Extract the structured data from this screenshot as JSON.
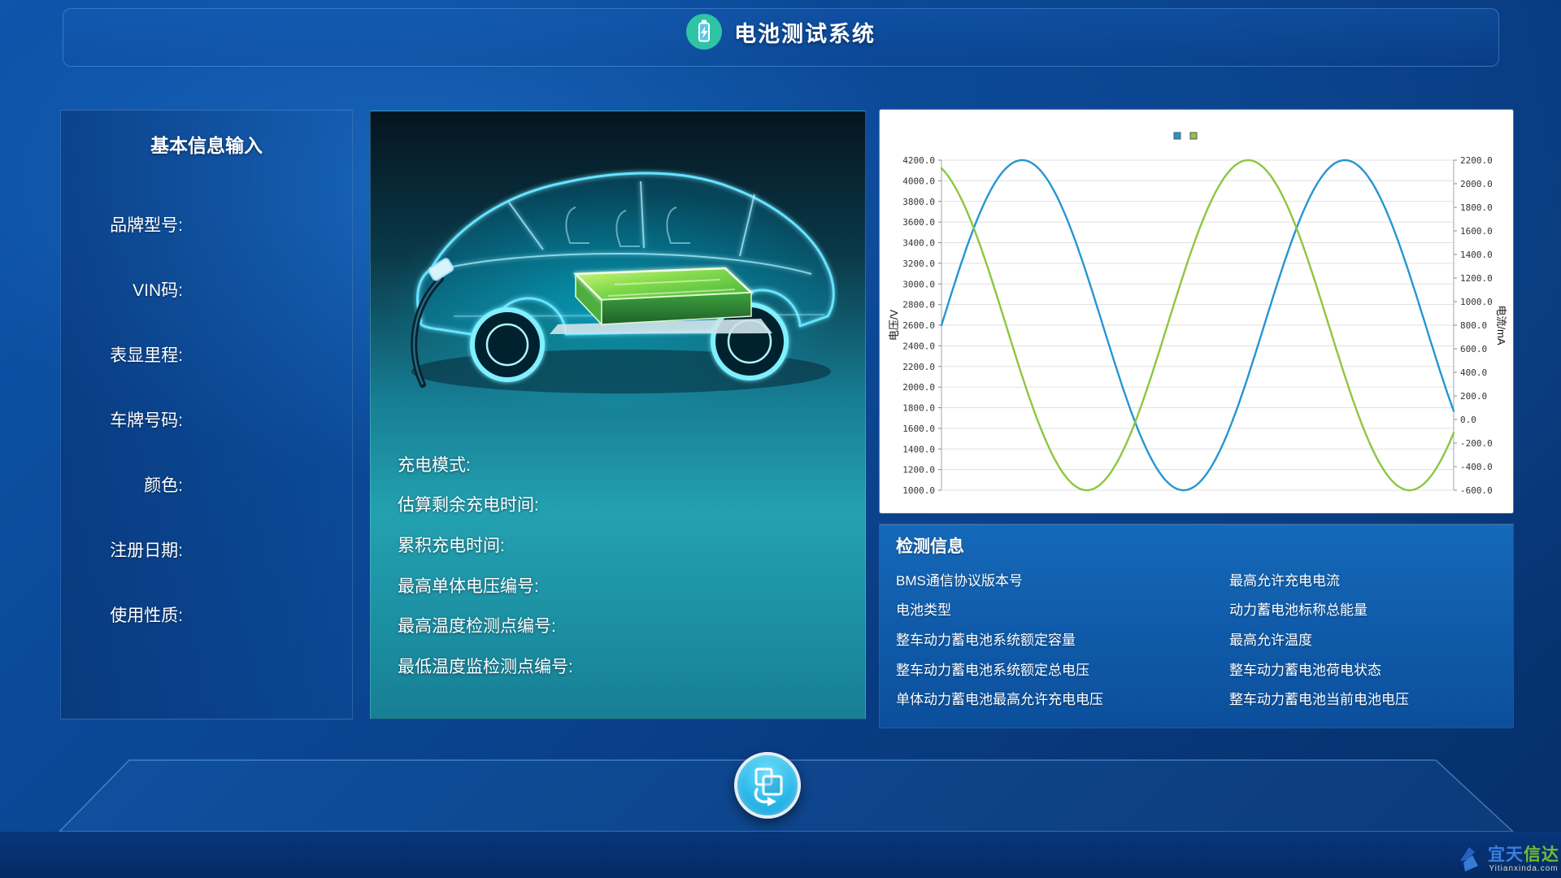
{
  "app": {
    "title": "电池测试系统"
  },
  "basic_info": {
    "title": "基本信息输入",
    "fields": [
      "品牌型号:",
      "VIN码:",
      "表显里程:",
      "车牌号码:",
      "颜色:",
      "注册日期:",
      "使用性质:"
    ]
  },
  "vehicle_status": {
    "fields": [
      "充电模式:",
      "估算剩余充电时间:",
      "累积充电时间:",
      "最高单体电压编号:",
      "最高温度检测点编号:",
      "最低温度监检测点编号:"
    ]
  },
  "chart_data": {
    "type": "line",
    "title": "",
    "grid": "horizontal",
    "legend_position": "top-center",
    "legend_swatches": [
      "#2596d1",
      "#8dc63f"
    ],
    "y_left": {
      "label": "电压/V",
      "min": 1000,
      "max": 4200,
      "step": 200,
      "tick_format": "0.0"
    },
    "y_right": {
      "label": "电流/mA",
      "min": -600,
      "max": 2200,
      "step": 200,
      "tick_format": "0.0"
    },
    "series": [
      {
        "name": "电压",
        "axis": "left",
        "color": "#2596d1",
        "waveform": {
          "shape": "sine",
          "center": 2600,
          "amplitude": 1600,
          "cycles": 1.587,
          "phase_deg": 0
        },
        "start_value": 2600,
        "peak": 4200,
        "trough": 1000
      },
      {
        "name": "电流",
        "axis": "left",
        "color": "#8dc63f",
        "waveform": {
          "shape": "sine",
          "center": 2600,
          "amplitude": 1600,
          "cycles": 1.587,
          "phase_deg": 108
        },
        "start_value": 4100,
        "peak": 4200,
        "trough": 1000
      }
    ]
  },
  "detection_info": {
    "title": "检测信息",
    "left_items": [
      "BMS通信协议版本号",
      "电池类型",
      "整车动力蓄电池系统额定容量",
      "整车动力蓄电池系统额定总电压",
      "单体动力蓄电池最高允许充电电压"
    ],
    "right_items": [
      "最高允许充电电流",
      "动力蓄电池标称总能量",
      "最高允许温度",
      "整车动力蓄电池荷电状态",
      "整车动力蓄电池当前电池电压"
    ]
  },
  "watermark": {
    "name_blue": "宜天",
    "name_green": "信达",
    "domain": "Yitianxinda.com"
  },
  "colors": {
    "header_icon_green": "#2ec4a5",
    "chart_blue": "#2596d1",
    "chart_green": "#8dc63f",
    "button_cyan": "#22b4e6"
  }
}
